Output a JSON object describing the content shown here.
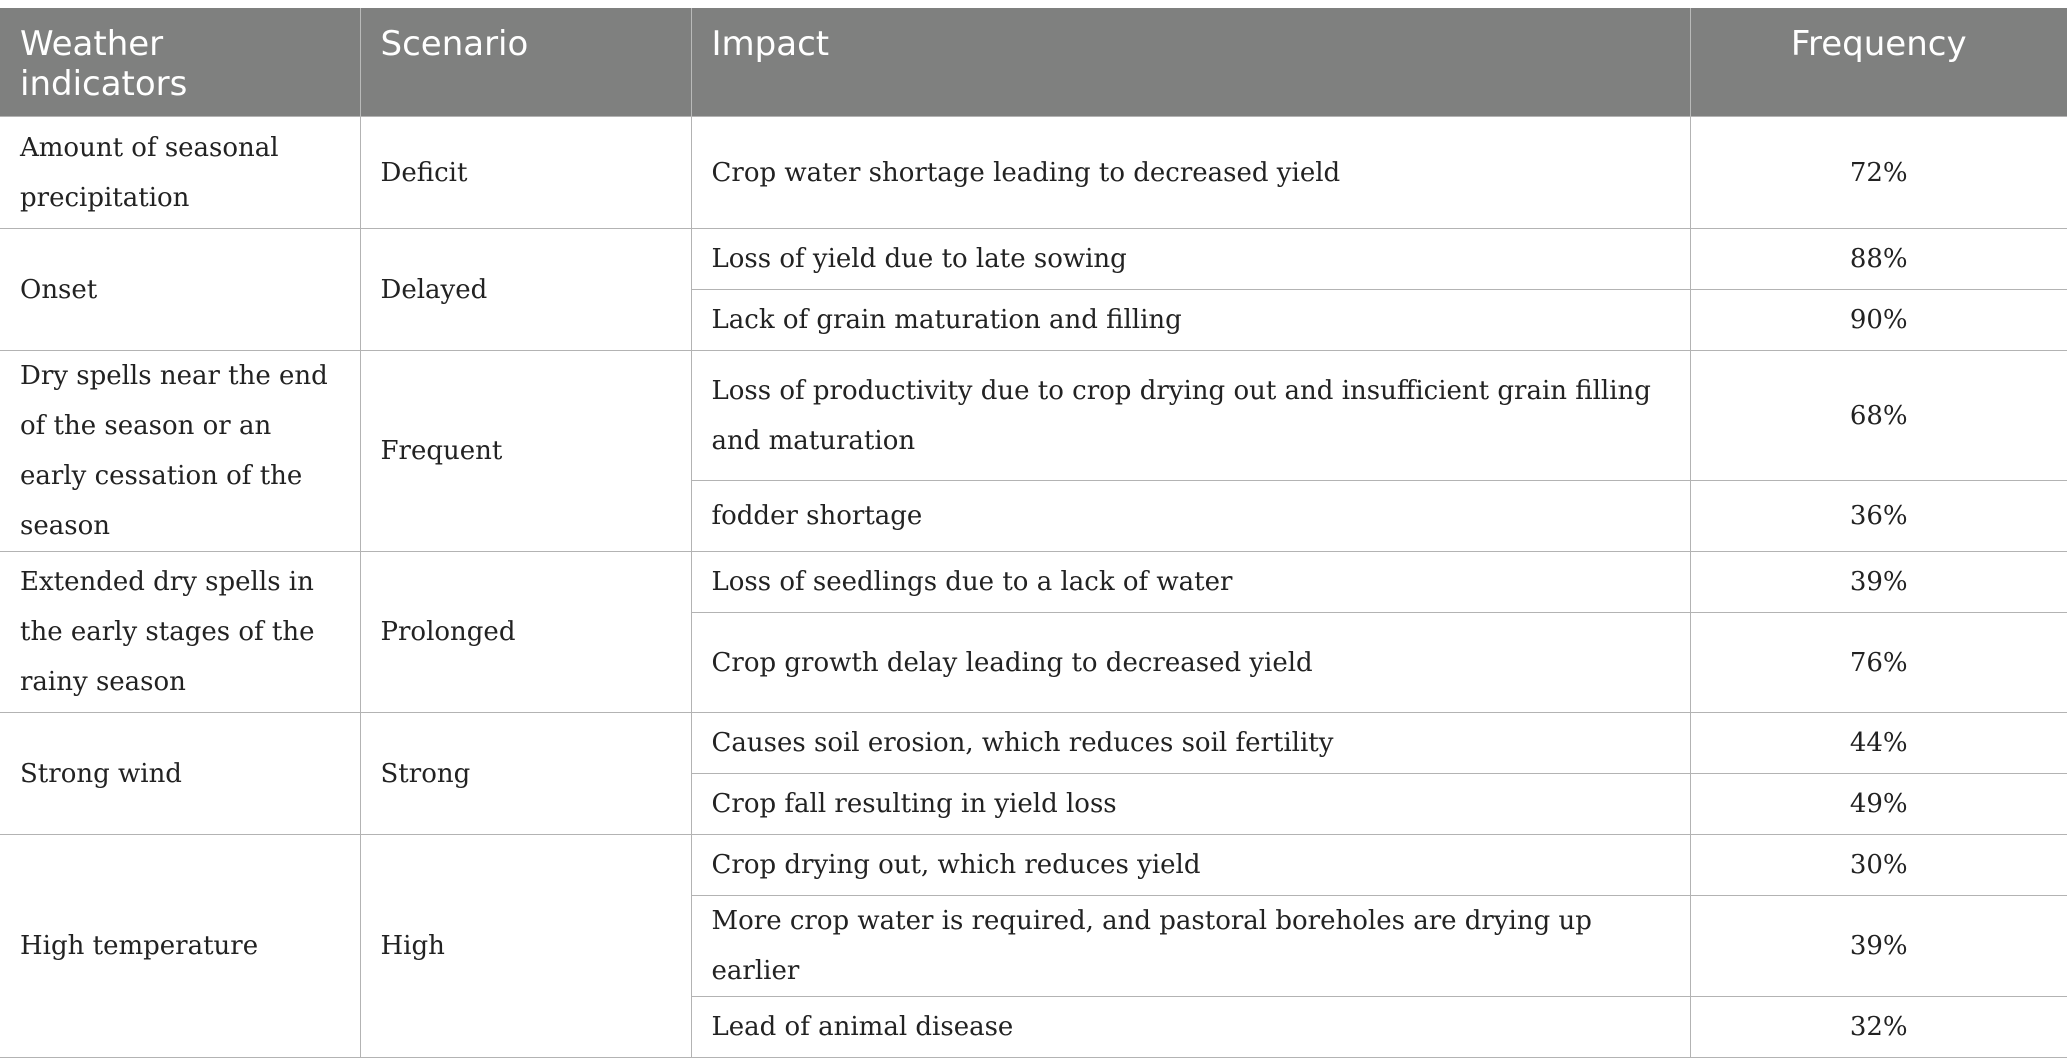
{
  "table": {
    "headers": {
      "weather_indicators": "Weather indicators",
      "scenario": "Scenario",
      "impact": "Impact",
      "frequency": "Frequency"
    },
    "groups": [
      {
        "indicator": "Amount of seasonal precipitation",
        "scenario": "Deficit",
        "rows": [
          {
            "impact": "Crop water shortage leading to decreased yield",
            "frequency": "72%"
          }
        ]
      },
      {
        "indicator": "Onset",
        "scenario": "Delayed",
        "rows": [
          {
            "impact": "Loss of yield due to late sowing",
            "frequency": "88%"
          },
          {
            "impact": "Lack of grain maturation and filling",
            "frequency": "90%"
          }
        ]
      },
      {
        "indicator": "Dry spells near the end of the season or an early cessation of the season",
        "scenario": "Frequent",
        "rows": [
          {
            "impact": "Loss of productivity due to crop drying out and insufficient grain filling and maturation",
            "frequency": "68%"
          },
          {
            "impact": "fodder shortage",
            "frequency": "36%"
          }
        ]
      },
      {
        "indicator": "Extended dry spells in the early stages of the rainy season",
        "scenario": "Prolonged",
        "rows": [
          {
            "impact": "Loss of seedlings due to a lack of water",
            "frequency": "39%"
          },
          {
            "impact": "Crop growth delay leading to decreased yield",
            "frequency": "76%"
          }
        ]
      },
      {
        "indicator": "Strong wind",
        "scenario": "Strong",
        "rows": [
          {
            "impact": "Causes soil erosion, which reduces soil fertility",
            "frequency": "44%"
          },
          {
            "impact": "Crop fall resulting in yield loss",
            "frequency": "49%"
          }
        ]
      },
      {
        "indicator": "High temperature",
        "scenario": "High",
        "rows": [
          {
            "impact": "Crop drying out, which reduces yield",
            "frequency": "30%"
          },
          {
            "impact": "More crop water is required, and pastoral boreholes are drying up earlier",
            "frequency": "39%"
          },
          {
            "impact": "Lead of animal disease",
            "frequency": "32%"
          }
        ]
      }
    ]
  }
}
